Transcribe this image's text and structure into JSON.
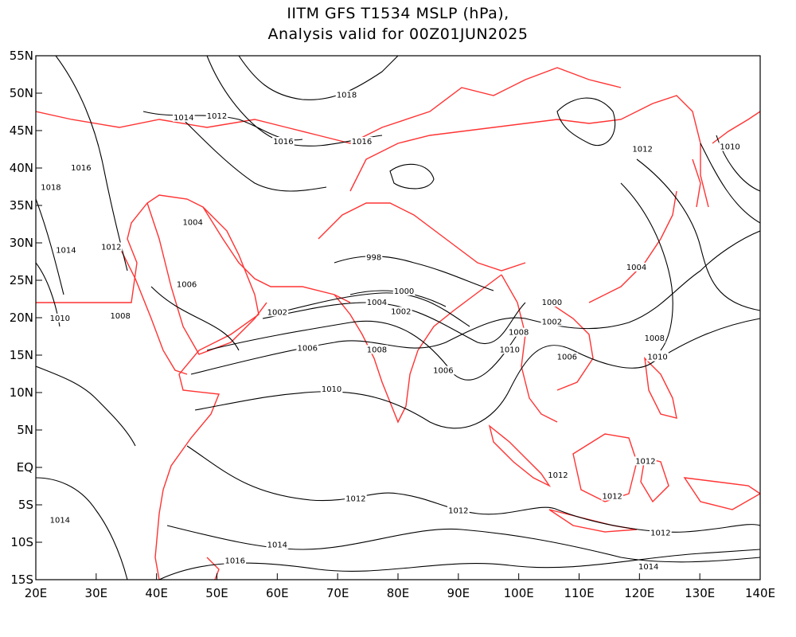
{
  "title_line1": "IITM GFS T1534 MSLP (hPa),",
  "title_line2": "Analysis valid for 00Z01JUN2025",
  "map": {
    "lon_range": [
      20,
      140
    ],
    "lat_range": [
      -15,
      55
    ],
    "x_ticks": [
      "20E",
      "30E",
      "40E",
      "50E",
      "60E",
      "70E",
      "80E",
      "90E",
      "100E",
      "110E",
      "120E",
      "130E",
      "140E"
    ],
    "y_ticks": [
      "15S",
      "10S",
      "5S",
      "EQ",
      "5N",
      "10N",
      "15N",
      "20N",
      "25N",
      "30N",
      "35N",
      "40N",
      "45N",
      "50N",
      "55N"
    ],
    "contour_color": "#000000",
    "boundary_color": "#ff3333"
  },
  "contour_labels": [
    {
      "text": "1018",
      "lon": 71.5,
      "lat": 49.5
    },
    {
      "text": "1014",
      "lon": 44.5,
      "lat": 46.5
    },
    {
      "text": "1012",
      "lon": 50,
      "lat": 46.7
    },
    {
      "text": "1016",
      "lon": 61,
      "lat": 43.3
    },
    {
      "text": "1016",
      "lon": 74,
      "lat": 43.3
    },
    {
      "text": "1012",
      "lon": 120.5,
      "lat": 42.3
    },
    {
      "text": "1010",
      "lon": 135,
      "lat": 42.6
    },
    {
      "text": "1016",
      "lon": 27.5,
      "lat": 39.8
    },
    {
      "text": "1018",
      "lon": 22.5,
      "lat": 37.2
    },
    {
      "text": "1004",
      "lon": 46,
      "lat": 32.5
    },
    {
      "text": "1014",
      "lon": 25,
      "lat": 28.8
    },
    {
      "text": "1012",
      "lon": 32.5,
      "lat": 29.2
    },
    {
      "text": "998",
      "lon": 76,
      "lat": 27.8
    },
    {
      "text": "1004",
      "lon": 119.5,
      "lat": 26.5
    },
    {
      "text": "1006",
      "lon": 45,
      "lat": 24.2
    },
    {
      "text": "1000",
      "lon": 81,
      "lat": 23.3
    },
    {
      "text": "1004",
      "lon": 76.5,
      "lat": 21.8
    },
    {
      "text": "1000",
      "lon": 105.5,
      "lat": 21.8
    },
    {
      "text": "1002",
      "lon": 60,
      "lat": 20.5
    },
    {
      "text": "1002",
      "lon": 80.5,
      "lat": 20.6
    },
    {
      "text": "1010",
      "lon": 24,
      "lat": 19.7
    },
    {
      "text": "1008",
      "lon": 34,
      "lat": 20
    },
    {
      "text": "1002",
      "lon": 105.5,
      "lat": 19.2
    },
    {
      "text": "1008",
      "lon": 100,
      "lat": 17.8
    },
    {
      "text": "1008",
      "lon": 122.5,
      "lat": 17
    },
    {
      "text": "1006",
      "lon": 65,
      "lat": 15.7
    },
    {
      "text": "1008",
      "lon": 76.5,
      "lat": 15.5
    },
    {
      "text": "1010",
      "lon": 98.5,
      "lat": 15.5
    },
    {
      "text": "1006",
      "lon": 108,
      "lat": 14.5
    },
    {
      "text": "1010",
      "lon": 123,
      "lat": 14.5
    },
    {
      "text": "1006",
      "lon": 87.5,
      "lat": 12.7
    },
    {
      "text": "1010",
      "lon": 69,
      "lat": 10.2
    },
    {
      "text": "1012",
      "lon": 121,
      "lat": 0.6
    },
    {
      "text": "1012",
      "lon": 106.5,
      "lat": -1.3
    },
    {
      "text": "1012",
      "lon": 73,
      "lat": -4.4
    },
    {
      "text": "1012",
      "lon": 115.5,
      "lat": -4.1
    },
    {
      "text": "1012",
      "lon": 90,
      "lat": -6
    },
    {
      "text": "1014",
      "lon": 24,
      "lat": -7.3
    },
    {
      "text": "1014",
      "lon": 60,
      "lat": -10.6
    },
    {
      "text": "1012",
      "lon": 123.5,
      "lat": -9
    },
    {
      "text": "1016",
      "lon": 53,
      "lat": -12.7
    },
    {
      "text": "1014",
      "lon": 121.5,
      "lat": -13.5
    }
  ]
}
